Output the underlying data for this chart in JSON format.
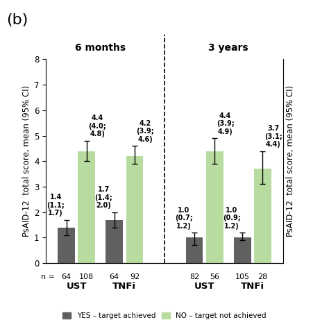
{
  "title": "(b)",
  "section_labels": [
    "6 months",
    "3 years"
  ],
  "group_labels": [
    "UST",
    "TNFi",
    "UST",
    "TNFi"
  ],
  "ylabel": "PsAID-12  total score, mean (95% CI)",
  "ylabel_right": "PsAID-12  total score, mean (95% CI)",
  "ylim": [
    0,
    8
  ],
  "yticks": [
    0,
    1,
    2,
    3,
    4,
    5,
    6,
    7,
    8
  ],
  "bar_width": 0.32,
  "dark_color": "#606060",
  "light_color": "#b8dba0",
  "bars": [
    {
      "group": 0,
      "yes_val": 1.4,
      "yes_lo": 1.1,
      "yes_hi": 1.7,
      "yes_n": 64,
      "no_val": 4.4,
      "no_lo": 4.0,
      "no_hi": 4.8,
      "no_n": 108
    },
    {
      "group": 1,
      "yes_val": 1.7,
      "yes_lo": 1.4,
      "yes_hi": 2.0,
      "yes_n": 64,
      "no_val": 4.2,
      "no_lo": 3.9,
      "no_hi": 4.6,
      "no_n": 92
    },
    {
      "group": 2,
      "yes_val": 1.0,
      "yes_lo": 0.7,
      "yes_hi": 1.2,
      "yes_n": 82,
      "no_val": 4.4,
      "no_lo": 3.9,
      "no_hi": 4.9,
      "no_n": 56
    },
    {
      "group": 3,
      "yes_val": 1.0,
      "yes_lo": 0.9,
      "yes_hi": 1.2,
      "yes_n": 105,
      "no_val": 3.7,
      "no_lo": 3.1,
      "no_hi": 4.4,
      "no_n": 28
    }
  ],
  "legend": [
    {
      "label": "YES – target achieved",
      "color": "#606060"
    },
    {
      "label": "NO – target not achieved",
      "color": "#b8dba0"
    }
  ],
  "annotation_fontsize": 7.0,
  "tick_fontsize": 8.5,
  "label_fontsize": 8.5,
  "section_fontsize": 10,
  "group_label_fontsize": 9.5,
  "n_fontsize": 8.0,
  "title_fontsize": 16
}
